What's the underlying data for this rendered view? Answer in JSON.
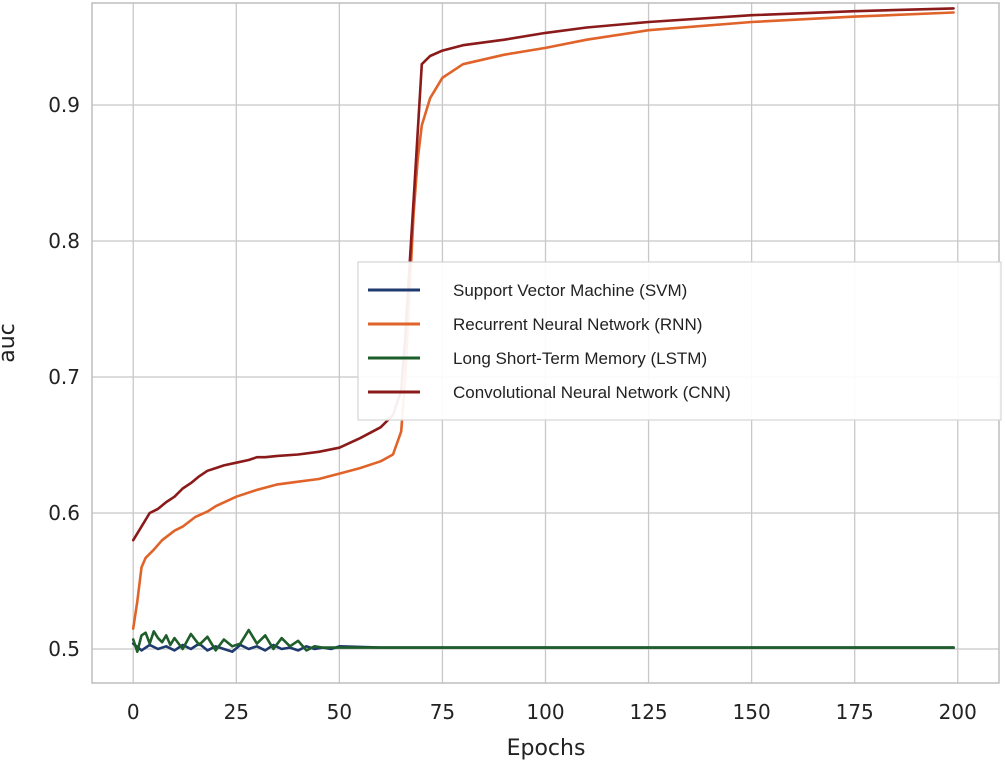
{
  "chart_data": {
    "type": "line",
    "title": "",
    "xlabel": "Epochs",
    "ylabel": "auc",
    "xlim": [
      -10,
      210
    ],
    "ylim": [
      0.475,
      0.975
    ],
    "xticks": [
      0,
      25,
      50,
      75,
      100,
      125,
      150,
      175,
      200
    ],
    "yticks": [
      0.5,
      0.6,
      0.7,
      0.8,
      0.9
    ],
    "grid": true,
    "legend_position": "center-right",
    "series": [
      {
        "name": "Support Vector Machine (SVM)",
        "color": "#1f3a6e",
        "x": [
          0,
          2,
          4,
          6,
          8,
          10,
          12,
          14,
          16,
          18,
          20,
          22,
          24,
          26,
          28,
          30,
          32,
          34,
          36,
          38,
          40,
          42,
          44,
          46,
          48,
          50,
          60,
          80,
          100,
          120,
          140,
          160,
          180,
          199
        ],
        "y": [
          0.504,
          0.499,
          0.503,
          0.5,
          0.502,
          0.499,
          0.503,
          0.5,
          0.504,
          0.499,
          0.502,
          0.5,
          0.498,
          0.503,
          0.5,
          0.502,
          0.499,
          0.503,
          0.5,
          0.501,
          0.499,
          0.502,
          0.5,
          0.501,
          0.5,
          0.502,
          0.501,
          0.501,
          0.501,
          0.501,
          0.501,
          0.501,
          0.501,
          0.501
        ]
      },
      {
        "name": "Recurrent Neural Network (RNN)",
        "color": "#e0632a",
        "x": [
          0,
          1,
          2,
          3,
          5,
          7,
          10,
          12,
          15,
          18,
          20,
          25,
          30,
          35,
          40,
          45,
          50,
          55,
          60,
          63,
          65,
          66,
          67,
          68,
          69,
          70,
          72,
          75,
          80,
          90,
          100,
          110,
          125,
          150,
          175,
          199
        ],
        "y": [
          0.515,
          0.535,
          0.56,
          0.567,
          0.573,
          0.58,
          0.587,
          0.59,
          0.597,
          0.601,
          0.605,
          0.612,
          0.617,
          0.621,
          0.623,
          0.625,
          0.629,
          0.633,
          0.638,
          0.643,
          0.66,
          0.7,
          0.76,
          0.82,
          0.86,
          0.885,
          0.905,
          0.92,
          0.93,
          0.937,
          0.942,
          0.948,
          0.955,
          0.961,
          0.965,
          0.968
        ]
      },
      {
        "name": "Long Short-Term Memory (LSTM)",
        "color": "#1e5e2a",
        "x": [
          0,
          1,
          2,
          3,
          4,
          5,
          6,
          7,
          8,
          9,
          10,
          12,
          14,
          16,
          18,
          20,
          22,
          24,
          26,
          28,
          30,
          32,
          34,
          36,
          38,
          40,
          42,
          44,
          46,
          50,
          60,
          80,
          100,
          120,
          140,
          160,
          180,
          199
        ],
        "y": [
          0.507,
          0.498,
          0.51,
          0.512,
          0.504,
          0.513,
          0.508,
          0.505,
          0.51,
          0.503,
          0.508,
          0.5,
          0.511,
          0.503,
          0.509,
          0.499,
          0.507,
          0.502,
          0.504,
          0.514,
          0.504,
          0.51,
          0.5,
          0.508,
          0.502,
          0.506,
          0.499,
          0.502,
          0.501,
          0.501,
          0.501,
          0.501,
          0.501,
          0.501,
          0.501,
          0.501,
          0.501,
          0.501
        ]
      },
      {
        "name": "Convolutional Neural Network (CNN)",
        "color": "#8b1a1a",
        "x": [
          0,
          2,
          4,
          6,
          8,
          10,
          12,
          14,
          16,
          18,
          20,
          22,
          25,
          28,
          30,
          32,
          35,
          40,
          45,
          50,
          55,
          60,
          63,
          65,
          66,
          67,
          68,
          69,
          70,
          72,
          75,
          80,
          90,
          100,
          110,
          125,
          150,
          175,
          199
        ],
        "y": [
          0.58,
          0.59,
          0.6,
          0.603,
          0.608,
          0.612,
          0.618,
          0.622,
          0.627,
          0.631,
          0.633,
          0.635,
          0.637,
          0.639,
          0.641,
          0.641,
          0.642,
          0.643,
          0.645,
          0.648,
          0.655,
          0.663,
          0.672,
          0.69,
          0.73,
          0.78,
          0.83,
          0.88,
          0.93,
          0.936,
          0.94,
          0.944,
          0.948,
          0.953,
          0.957,
          0.961,
          0.966,
          0.969,
          0.971
        ]
      }
    ]
  }
}
